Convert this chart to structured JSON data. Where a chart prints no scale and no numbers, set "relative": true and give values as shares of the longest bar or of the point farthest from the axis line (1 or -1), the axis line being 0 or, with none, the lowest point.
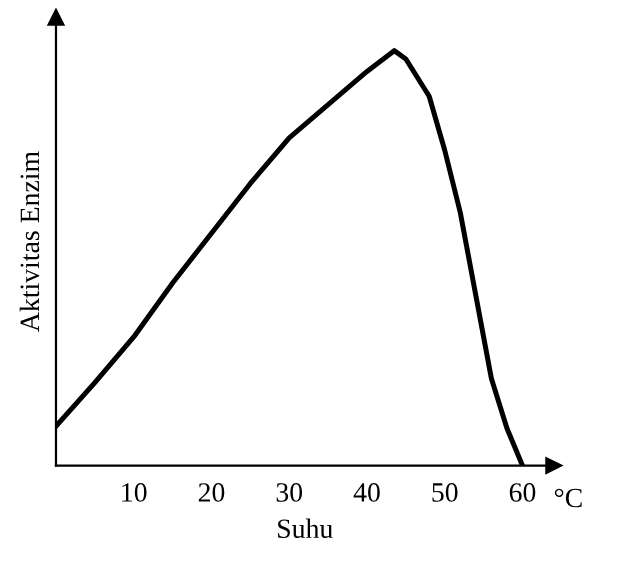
{
  "chart_data": {
    "type": "line",
    "relative": true,
    "xlabel": "Suhu",
    "ylabel": "Aktivitas Enzim",
    "annotations": [
      "°C"
    ],
    "x": [
      0,
      5,
      10,
      15,
      20,
      25,
      30,
      35,
      40,
      43.5,
      45,
      48,
      50,
      52,
      54,
      56,
      58,
      60
    ],
    "series": [
      {
        "color": "#000000",
        "values": [
          0.095,
          0.2,
          0.31,
          0.44,
          0.56,
          0.68,
          0.79,
          0.87,
          0.95,
          1.0,
          0.98,
          0.89,
          0.76,
          0.61,
          0.41,
          0.21,
          0.09,
          0
        ]
      }
    ],
    "xlim": [
      0,
      64
    ],
    "xticks": [
      10,
      20,
      30,
      40,
      50,
      60
    ],
    "tick_labels": "x",
    "grid": false,
    "marker": "none",
    "line_style": "solid"
  }
}
